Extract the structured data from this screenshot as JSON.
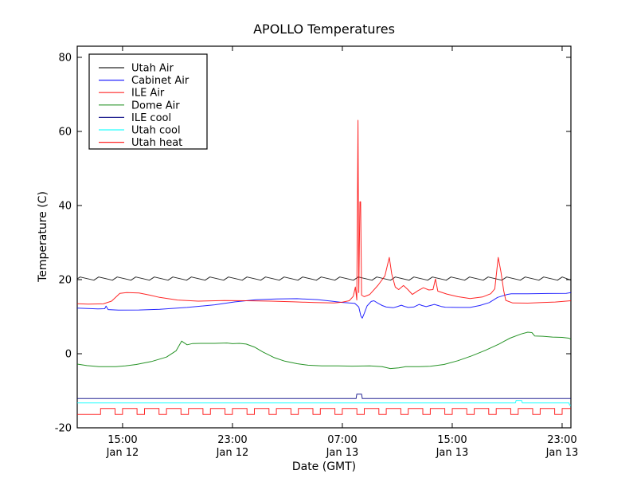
{
  "chart_data": {
    "type": "line",
    "title": "APOLLO Temperatures",
    "xlabel": "Date (GMT)",
    "ylabel": "Temperature (C)",
    "grid": false,
    "legend_position": "upper-left",
    "x_unit": "hours since Jan 12 00:00 GMT",
    "xlim": [
      11.7,
      47.64
    ],
    "ylim": [
      -20,
      83
    ],
    "yticks": [
      80,
      60,
      40,
      20,
      0,
      -20
    ],
    "xticks": [
      {
        "value": 15,
        "time": "15:00",
        "date": "Jan 12"
      },
      {
        "value": 23,
        "time": "23:00",
        "date": "Jan 12"
      },
      {
        "value": 31,
        "time": "07:00",
        "date": "Jan 13"
      },
      {
        "value": 39,
        "time": "15:00",
        "date": "Jan 13"
      },
      {
        "value": 47,
        "time": "23:00",
        "date": "Jan 13"
      }
    ],
    "series": [
      {
        "name": "Utah Air",
        "color": "#000000",
        "pattern": {
          "kind": "zigzag",
          "t_start": 11.7,
          "t_end": 47.64,
          "period": 1.35,
          "rise": 0.35,
          "peak": 20.7,
          "trough": 19.85,
          "start_value": 20.2
        }
      },
      {
        "name": "Cabinet Air",
        "color": "#0000ff",
        "points": [
          [
            11.7,
            12.3
          ],
          [
            13.2,
            12.1
          ],
          [
            13.7,
            12.15
          ],
          [
            13.8,
            12.85
          ],
          [
            13.95,
            11.9
          ],
          [
            14.7,
            11.75
          ],
          [
            16.2,
            11.8
          ],
          [
            17.7,
            12.0
          ],
          [
            19.7,
            12.5
          ],
          [
            21.7,
            13.2
          ],
          [
            23.2,
            14.0
          ],
          [
            24.7,
            14.55
          ],
          [
            26.2,
            14.8
          ],
          [
            27.7,
            14.85
          ],
          [
            29.2,
            14.6
          ],
          [
            30.2,
            14.2
          ],
          [
            31.0,
            13.85
          ],
          [
            31.5,
            13.7
          ],
          [
            31.9,
            13.6
          ],
          [
            32.2,
            12.6
          ],
          [
            32.35,
            10.2
          ],
          [
            32.45,
            9.6
          ],
          [
            32.6,
            10.9
          ],
          [
            32.8,
            12.9
          ],
          [
            33.1,
            14.1
          ],
          [
            33.3,
            14.3
          ],
          [
            33.6,
            13.6
          ],
          [
            33.9,
            13.0
          ],
          [
            34.2,
            12.6
          ],
          [
            34.7,
            12.4
          ],
          [
            35.0,
            12.7
          ],
          [
            35.3,
            13.1
          ],
          [
            35.5,
            12.8
          ],
          [
            35.8,
            12.5
          ],
          [
            36.2,
            12.6
          ],
          [
            36.6,
            13.3
          ],
          [
            36.8,
            13.0
          ],
          [
            37.1,
            12.7
          ],
          [
            37.4,
            13.0
          ],
          [
            37.7,
            13.3
          ],
          [
            37.9,
            13.1
          ],
          [
            38.2,
            12.75
          ],
          [
            38.5,
            12.55
          ],
          [
            39.5,
            12.5
          ],
          [
            40.3,
            12.5
          ],
          [
            41.0,
            13.0
          ],
          [
            41.7,
            13.8
          ],
          [
            42.3,
            15.2
          ],
          [
            43.0,
            16.0
          ],
          [
            43.3,
            16.2
          ],
          [
            44.5,
            16.2
          ],
          [
            46.0,
            16.25
          ],
          [
            47.3,
            16.3
          ],
          [
            47.64,
            16.5
          ]
        ]
      },
      {
        "name": "ILE Air",
        "color": "#ff0000",
        "points": [
          [
            11.7,
            13.5
          ],
          [
            12.5,
            13.4
          ],
          [
            13.6,
            13.45
          ],
          [
            14.2,
            14.2
          ],
          [
            14.8,
            16.3
          ],
          [
            15.3,
            16.5
          ],
          [
            16.2,
            16.4
          ],
          [
            17.0,
            15.8
          ],
          [
            17.7,
            15.2
          ],
          [
            19.0,
            14.5
          ],
          [
            20.5,
            14.2
          ],
          [
            22.4,
            14.35
          ],
          [
            24.0,
            14.3
          ],
          [
            25.8,
            14.2
          ],
          [
            27.5,
            14.0
          ],
          [
            29.0,
            13.8
          ],
          [
            30.4,
            13.7
          ],
          [
            31.0,
            13.9
          ],
          [
            31.5,
            14.3
          ],
          [
            31.8,
            15.5
          ],
          [
            31.95,
            18.0
          ],
          [
            32.05,
            14.5
          ],
          [
            32.1,
            40.0
          ],
          [
            32.14,
            63.0
          ],
          [
            32.2,
            16.5
          ],
          [
            32.28,
            41.0
          ],
          [
            32.33,
            41.0
          ],
          [
            32.4,
            15.8
          ],
          [
            32.6,
            15.4
          ],
          [
            33.0,
            16.0
          ],
          [
            33.6,
            18.5
          ],
          [
            34.1,
            21.0
          ],
          [
            34.42,
            26.0
          ],
          [
            34.6,
            21.5
          ],
          [
            34.85,
            18.0
          ],
          [
            35.1,
            17.3
          ],
          [
            35.45,
            18.4
          ],
          [
            35.75,
            17.4
          ],
          [
            36.1,
            16.0
          ],
          [
            36.5,
            17.0
          ],
          [
            36.9,
            17.8
          ],
          [
            37.3,
            17.2
          ],
          [
            37.6,
            17.3
          ],
          [
            37.78,
            20.2
          ],
          [
            37.95,
            16.9
          ],
          [
            38.6,
            16.1
          ],
          [
            39.4,
            15.4
          ],
          [
            40.3,
            14.9
          ],
          [
            41.2,
            15.3
          ],
          [
            41.8,
            16.2
          ],
          [
            42.1,
            17.5
          ],
          [
            42.35,
            26.0
          ],
          [
            42.55,
            22.0
          ],
          [
            42.75,
            17.0
          ],
          [
            42.9,
            14.4
          ],
          [
            43.4,
            13.7
          ],
          [
            44.5,
            13.65
          ],
          [
            45.5,
            13.8
          ],
          [
            46.5,
            13.95
          ],
          [
            47.64,
            14.3
          ]
        ]
      },
      {
        "name": "Dome Air",
        "color": "#008000",
        "points": [
          [
            11.7,
            -2.8
          ],
          [
            12.4,
            -3.2
          ],
          [
            13.3,
            -3.5
          ],
          [
            14.5,
            -3.5
          ],
          [
            15.2,
            -3.3
          ],
          [
            16.0,
            -2.9
          ],
          [
            17.1,
            -2.1
          ],
          [
            18.2,
            -0.9
          ],
          [
            18.9,
            0.8
          ],
          [
            19.3,
            3.4
          ],
          [
            19.7,
            2.4
          ],
          [
            20.1,
            2.75
          ],
          [
            20.7,
            2.8
          ],
          [
            21.7,
            2.8
          ],
          [
            22.6,
            2.9
          ],
          [
            23.0,
            2.7
          ],
          [
            23.5,
            2.8
          ],
          [
            24.0,
            2.6
          ],
          [
            24.6,
            1.8
          ],
          [
            25.2,
            0.5
          ],
          [
            26.0,
            -1.0
          ],
          [
            26.8,
            -2.0
          ],
          [
            27.7,
            -2.7
          ],
          [
            28.5,
            -3.1
          ],
          [
            29.5,
            -3.3
          ],
          [
            30.7,
            -3.3
          ],
          [
            31.7,
            -3.35
          ],
          [
            33.0,
            -3.3
          ],
          [
            33.9,
            -3.5
          ],
          [
            34.5,
            -4.0
          ],
          [
            35.1,
            -3.8
          ],
          [
            35.6,
            -3.5
          ],
          [
            36.6,
            -3.5
          ],
          [
            37.4,
            -3.4
          ],
          [
            38.4,
            -2.9
          ],
          [
            39.4,
            -1.9
          ],
          [
            40.4,
            -0.6
          ],
          [
            41.4,
            0.9
          ],
          [
            42.4,
            2.6
          ],
          [
            43.2,
            4.2
          ],
          [
            44.0,
            5.3
          ],
          [
            44.5,
            5.8
          ],
          [
            44.8,
            5.7
          ],
          [
            45.0,
            4.8
          ],
          [
            45.6,
            4.7
          ],
          [
            46.3,
            4.5
          ],
          [
            47.0,
            4.4
          ],
          [
            47.5,
            4.2
          ],
          [
            47.64,
            3.9
          ]
        ]
      },
      {
        "name": "ILE cool",
        "color": "#000080",
        "points": [
          [
            11.7,
            -12.1
          ],
          [
            32.0,
            -12.1
          ],
          [
            32.05,
            -10.9
          ],
          [
            32.4,
            -10.9
          ],
          [
            32.45,
            -12.1
          ],
          [
            47.64,
            -12.1
          ]
        ]
      },
      {
        "name": "Utah cool",
        "color": "#00ffff",
        "points": [
          [
            11.7,
            -13.3
          ],
          [
            43.6,
            -13.3
          ],
          [
            43.65,
            -12.6
          ],
          [
            44.05,
            -12.6
          ],
          [
            44.1,
            -13.3
          ],
          [
            47.5,
            -13.3
          ],
          [
            47.55,
            -13.9
          ],
          [
            47.64,
            -13.9
          ]
        ]
      },
      {
        "name": "Utah heat",
        "color": "#ff0000",
        "pattern": {
          "kind": "square",
          "t_start": 11.7,
          "t_end": 47.64,
          "lead_low": 1.7,
          "period": 1.6,
          "duty": 0.66,
          "high": -14.8,
          "low": -16.4
        }
      }
    ]
  }
}
